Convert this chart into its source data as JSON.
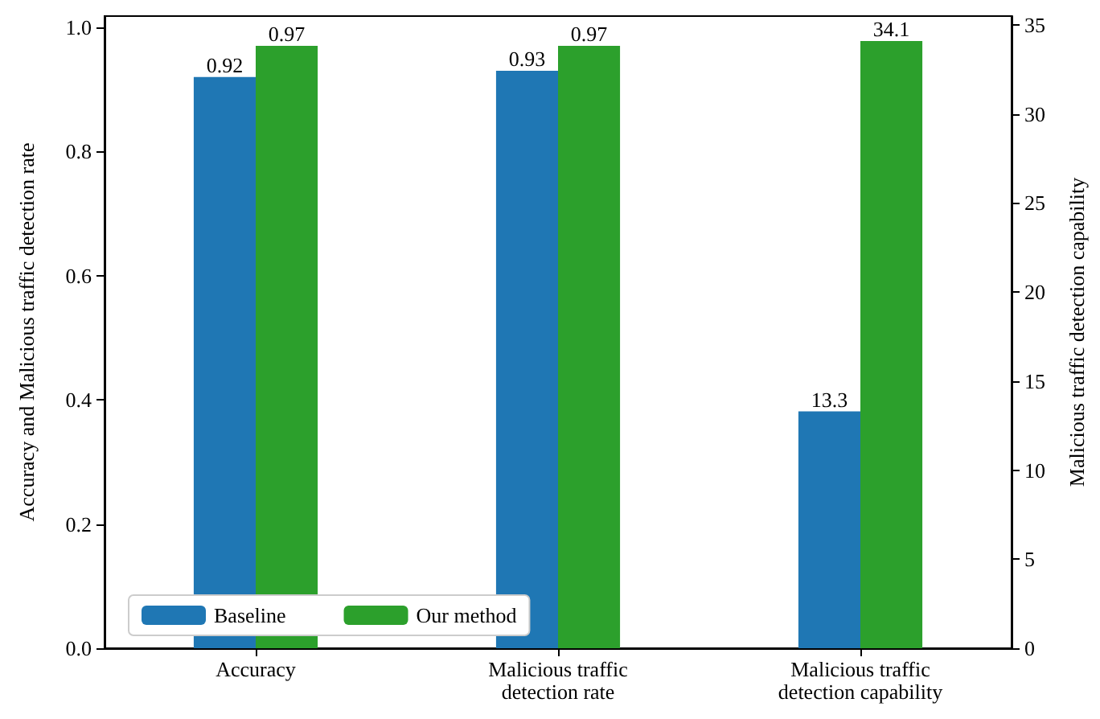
{
  "chart_data": {
    "type": "bar",
    "categories": [
      "Accuracy",
      "Malicious traffic\ndetection rate",
      "Malicious traffic\ndetection capability"
    ],
    "ylabel": "Accuracy and Malicious traffic detection rate",
    "y2label": "Malicious traffic detection capability",
    "series": [
      {
        "name": "Baseline",
        "color": "#1f77b4",
        "values": [
          0.92,
          0.93,
          null
        ]
      },
      {
        "color": "#1f77b4",
        "axis": "y2",
        "values": [
          null,
          null,
          13.3
        ]
      },
      {
        "name": "Our method",
        "color": "#2ca02c",
        "values": [
          0.97,
          0.97,
          null
        ]
      },
      {
        "color": "#2ca02c",
        "axis": "y2",
        "values": [
          null,
          null,
          34.1
        ]
      }
    ],
    "ylim": [
      0,
      1.018
    ],
    "yticks": [
      {
        "value": 0,
        "label": "0.0"
      },
      0.2,
      0.4,
      0.6,
      0.8,
      {
        "value": 1,
        "label": "1.0"
      }
    ],
    "y2lim": [
      0,
      35.5
    ],
    "y2ticks": [
      0,
      5,
      10,
      15,
      20,
      25,
      30,
      35
    ],
    "data_labels": true,
    "legend": "bottom left",
    "grid": false
  }
}
